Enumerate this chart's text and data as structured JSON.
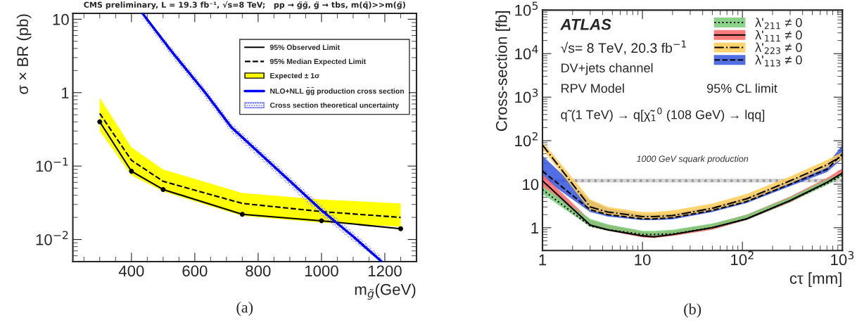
{
  "chart_data": [
    {
      "type": "line",
      "title": "CMS preliminary, L = 19.3 fb⁻¹, √s=8 TeV;   pp → g̃g̃, g̃ → tbs, m(q̃)>>m(g̃)",
      "xlabel": "m$_{g̃}$(GeV)",
      "ylabel": "σ × BR (pb)",
      "x": [
        300,
        400,
        500,
        750,
        1000,
        1250
      ],
      "series": [
        {
          "name": "95% Observed Limit",
          "type": "line",
          "color": "#000000",
          "marker": "circle",
          "line_style": "solid",
          "values": [
            0.4,
            0.085,
            0.048,
            0.022,
            0.018,
            0.014
          ]
        },
        {
          "name": "95% Median Expected Limit",
          "type": "line",
          "color": "#000000",
          "line_style": "dashed",
          "values": [
            0.52,
            0.12,
            0.062,
            0.031,
            0.024,
            0.02
          ]
        },
        {
          "name": "Expected ± 1σ",
          "type": "area",
          "color": "#ffff00",
          "values": [
            null,
            null,
            null,
            null,
            null,
            null
          ],
          "lower": [
            0.3,
            0.075,
            0.045,
            0.021,
            0.017,
            0.015
          ],
          "upper": [
            0.85,
            0.18,
            0.09,
            0.043,
            0.035,
            0.031
          ]
        },
        {
          "name": "NLO+NLL g̃g̃ production cross section",
          "type": "line",
          "color": "#0000ff",
          "line_style": "solid",
          "x": [
            435,
            530,
            633,
            715,
            849,
            1000,
            1100,
            1190
          ],
          "values": [
            12,
            3.5,
            1,
            0.34,
            0.1,
            0.025,
            0.011,
            0.005
          ]
        },
        {
          "name": "Cross section theoretical uncertainty",
          "type": "area",
          "color": "#8080ff",
          "x": [
            435,
            530,
            633,
            715,
            849,
            1000,
            1100,
            1190
          ],
          "values": [
            null,
            null,
            null,
            null,
            null,
            null,
            null,
            null
          ],
          "lower": [
            10.4,
            3.0,
            0.85,
            0.29,
            0.085,
            0.021,
            0.0094,
            0.005
          ],
          "upper": [
            12,
            4.0,
            1.15,
            0.39,
            0.115,
            0.029,
            0.0127,
            0.0058
          ]
        }
      ],
      "xlim": [
        215,
        1300
      ],
      "xticks": [
        400,
        600,
        800,
        1000,
        1200
      ],
      "ylim": [
        0.005,
        12
      ],
      "yticks": [
        {
          "value": 0.01,
          "label": "10$^{−2}$"
        },
        {
          "value": 0.1,
          "label": "10$^{−1}$"
        },
        1,
        10
      ],
      "log": "y",
      "grid": false,
      "legend": "top right",
      "annotations": [
        "(a)"
      ]
    },
    {
      "type": "line",
      "xlabel": "cτ [mm]",
      "ylabel": "Cross-section [fb]",
      "x": [
        1,
        3,
        4.5,
        10,
        13,
        20,
        50,
        110,
        300,
        700,
        1000
      ],
      "series": [
        {
          "name": "λ'$_{113}$ ≠ 0",
          "type": "area",
          "color": "#3355dd",
          "values": [
            null,
            null,
            null,
            null,
            null,
            null,
            null,
            null,
            null,
            null,
            null
          ],
          "lower": [
            14,
            2.3,
            1.8,
            1.5,
            1.5,
            1.55,
            2.3,
            3.7,
            9,
            19,
            38
          ],
          "upper": [
            45,
            4.2,
            2.8,
            2.0,
            2.0,
            2.1,
            3.0,
            5.0,
            12,
            28,
            80
          ]
        },
        {
          "type": "line",
          "color": "#000000",
          "line_style": "dashed",
          "values": [
            20,
            2.6,
            2.0,
            1.6,
            1.6,
            1.7,
            2.5,
            4.0,
            10,
            22,
            50
          ]
        },
        {
          "name": "λ'$_{223}$ ≠ 0",
          "type": "area",
          "color": "#ffcc55",
          "values": [
            null,
            null,
            null,
            null,
            null,
            null,
            null,
            null,
            null,
            null,
            null
          ],
          "lower": [
            65,
            2.5,
            2.0,
            1.6,
            1.6,
            1.7,
            2.5,
            4.0,
            10.5,
            24,
            38
          ],
          "upper": [
            95,
            4.5,
            3.0,
            2.3,
            2.3,
            2.5,
            3.6,
            6.0,
            15,
            36,
            55
          ]
        },
        {
          "type": "line",
          "color": "#000000",
          "line_style": "dashdot",
          "values": [
            80,
            3.0,
            2.3,
            1.8,
            1.8,
            1.9,
            2.8,
            4.6,
            12,
            28,
            45
          ]
        },
        {
          "name": "λ'$_{111}$ ≠ 0",
          "type": "area",
          "color": "#ff6666",
          "values": [
            null,
            null,
            null,
            null,
            null,
            null,
            null,
            null,
            null,
            null,
            null
          ],
          "lower": [
            9,
            1.05,
            0.85,
            0.6,
            0.58,
            0.65,
            0.9,
            1.5,
            3.8,
            10,
            16
          ],
          "upper": [
            17,
            1.5,
            1.15,
            0.8,
            0.75,
            0.85,
            1.2,
            2.0,
            5.2,
            14,
            23
          ]
        },
        {
          "type": "line",
          "color": "#000000",
          "line_style": "solid",
          "values": [
            12,
            1.15,
            0.9,
            0.65,
            0.62,
            0.7,
            1.0,
            1.6,
            4.2,
            11,
            18
          ]
        },
        {
          "name": "λ'$_{211}$ ≠ 0",
          "type": "area",
          "color": "#77cc77",
          "values": [
            null,
            null,
            null,
            null,
            null,
            null,
            null,
            null,
            null,
            null,
            null
          ],
          "lower": [
            6,
            1.05,
            0.85,
            0.65,
            0.65,
            0.68,
            0.95,
            1.5,
            3.9,
            9.5,
            15
          ],
          "upper": [
            9,
            1.6,
            1.2,
            0.85,
            0.85,
            0.9,
            1.25,
            2.0,
            5.0,
            13,
            18
          ]
        },
        {
          "type": "line",
          "color": "#000000",
          "line_style": "dotted",
          "values": [
            7.5,
            1.1,
            0.9,
            0.7,
            0.7,
            0.72,
            1.0,
            1.6,
            4.2,
            10.5,
            16
          ]
        }
      ],
      "xlim": [
        1,
        1000
      ],
      "xticks": [
        1,
        10,
        {
          "value": 100,
          "label": "10$^{2}$"
        },
        {
          "value": 1000,
          "label": "10$^{3}$"
        }
      ],
      "ylim": [
        0.3,
        100000
      ],
      "yticks": [
        1,
        10,
        {
          "value": 100,
          "label": "10$^{2}$"
        },
        {
          "value": 1000,
          "label": "10$^{3}$"
        },
        {
          "value": 10000,
          "label": "10$^{4}$"
        },
        {
          "value": 100000,
          "label": "10$^{5}$"
        }
      ],
      "log": "xy",
      "grid": false,
      "legend": "top",
      "bands": [
        {
          "axis": "y",
          "from": 11,
          "to": 13.5,
          "label": "1000 GeV squark production",
          "color": "#cccccc"
        }
      ],
      "ref_lines": [
        {
          "axis": "y",
          "value": 12,
          "line_style": "dotted",
          "color": "#999999"
        }
      ],
      "annotations": [
        "ATLAS",
        "√s= 8 TeV, 20.3 fb$^{−1}$",
        "DV+jets channel",
        "RPV Model",
        "q̃ (1 TeV) → q[χ̃$_{1}$$^{0}$ (108 GeV) → lqq]",
        "95% CL limit",
        "(b)"
      ]
    }
  ]
}
